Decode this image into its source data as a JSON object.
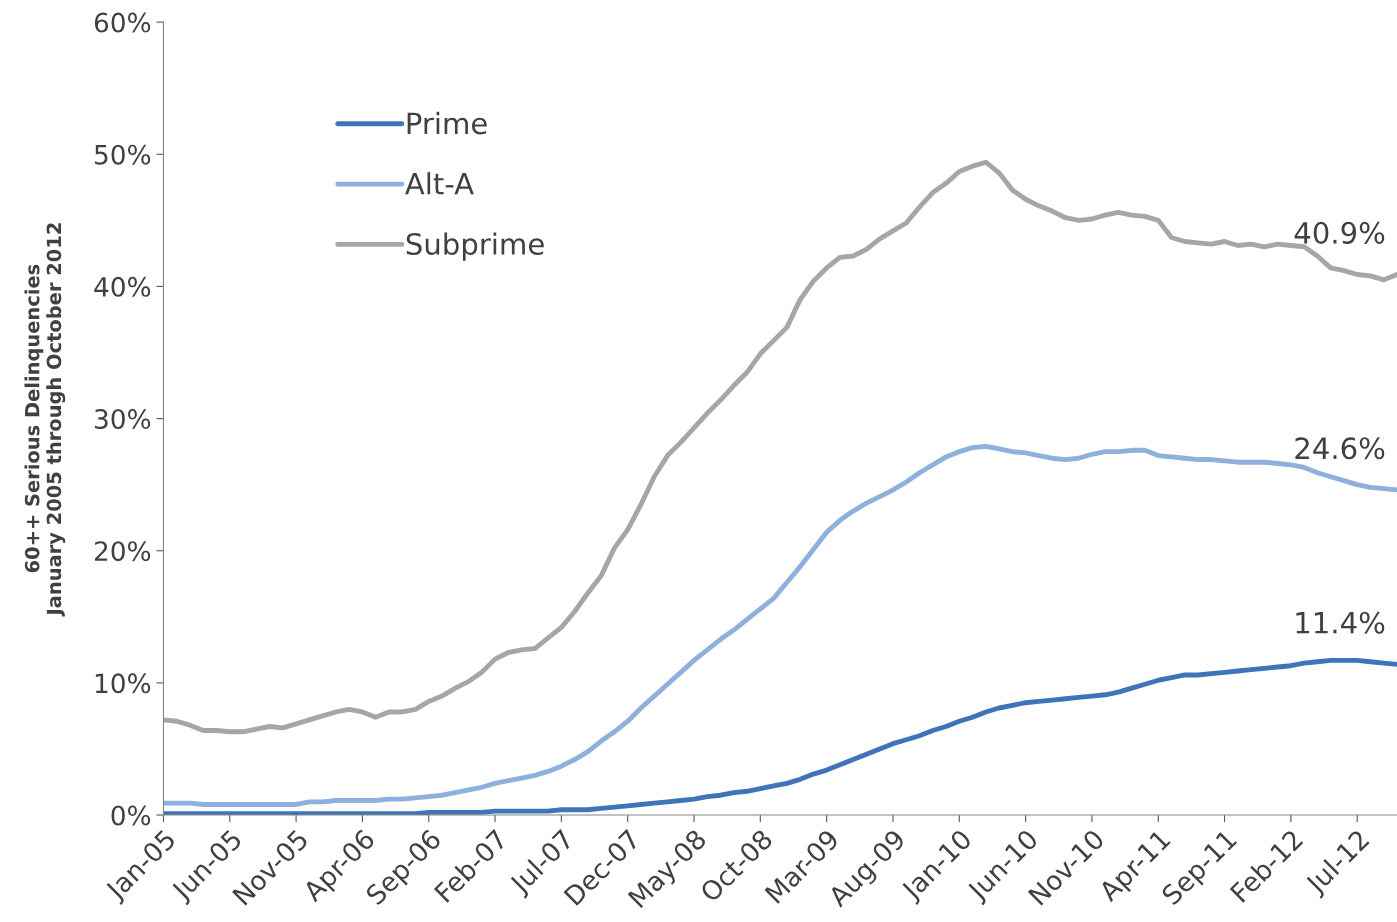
{
  "chart_data": {
    "type": "line",
    "ylabel": "60++ Serious Delinquencies\nJanuary 2005 through October 2012",
    "categories": [
      "Jan-05",
      null,
      null,
      null,
      null,
      "Jun-05",
      null,
      null,
      null,
      null,
      "Nov-05",
      null,
      null,
      null,
      null,
      "Apr-06",
      null,
      null,
      null,
      null,
      "Sep-06",
      null,
      null,
      null,
      null,
      "Feb-07",
      null,
      null,
      null,
      null,
      "Jul-07",
      null,
      null,
      null,
      null,
      "Dec-07",
      null,
      null,
      null,
      null,
      "May-08",
      null,
      null,
      null,
      null,
      "Oct-08",
      null,
      null,
      null,
      null,
      "Mar-09",
      null,
      null,
      null,
      null,
      "Aug-09",
      null,
      null,
      null,
      null,
      "Jan-10",
      null,
      null,
      null,
      null,
      "Jun-10",
      null,
      null,
      null,
      null,
      "Nov-10",
      null,
      null,
      null,
      null,
      "Apr-11",
      null,
      null,
      null,
      null,
      "Sep-11",
      null,
      null,
      null,
      null,
      "Feb-12",
      null,
      null,
      null,
      null,
      "Jul-12",
      null,
      null,
      null
    ],
    "series": [
      {
        "name": "Prime",
        "color": "#3f74b8",
        "values": [
          0.1,
          0.1,
          0.1,
          0.1,
          0.1,
          0.1,
          0.1,
          0.1,
          0.1,
          0.1,
          0.1,
          0.1,
          0.1,
          0.1,
          0.1,
          0.1,
          0.1,
          0.1,
          0.1,
          0.1,
          0.2,
          0.2,
          0.2,
          0.2,
          0.2,
          0.3,
          0.3,
          0.3,
          0.3,
          0.3,
          0.4,
          0.4,
          0.4,
          0.5,
          0.6,
          0.7,
          0.8,
          0.9,
          1.0,
          1.1,
          1.2,
          1.4,
          1.5,
          1.7,
          1.8,
          2.0,
          2.2,
          2.4,
          2.7,
          3.1,
          3.4,
          3.8,
          4.2,
          4.6,
          5.0,
          5.4,
          5.7,
          6.0,
          6.4,
          6.7,
          7.1,
          7.4,
          7.8,
          8.1,
          8.3,
          8.5,
          8.6,
          8.7,
          8.8,
          8.9,
          9.0,
          9.1,
          9.3,
          9.6,
          9.9,
          10.2,
          10.4,
          10.6,
          10.6,
          10.7,
          10.8,
          10.9,
          11.0,
          11.1,
          11.2,
          11.3,
          11.5,
          11.6,
          11.7,
          11.7,
          11.7,
          11.6,
          11.5,
          11.4
        ]
      },
      {
        "name": "Alt-A",
        "color": "#8eb0dc",
        "values": [
          0.9,
          0.9,
          0.9,
          0.8,
          0.8,
          0.8,
          0.8,
          0.8,
          0.8,
          0.8,
          0.8,
          1.0,
          1.0,
          1.1,
          1.1,
          1.1,
          1.1,
          1.2,
          1.2,
          1.3,
          1.4,
          1.5,
          1.7,
          1.9,
          2.1,
          2.4,
          2.6,
          2.8,
          3.0,
          3.3,
          3.7,
          4.2,
          4.8,
          5.6,
          6.3,
          7.1,
          8.1,
          9.0,
          9.9,
          10.8,
          11.7,
          12.5,
          13.3,
          14.0,
          14.8,
          15.6,
          16.4,
          17.6,
          18.8,
          20.1,
          21.4,
          22.3,
          23.0,
          23.6,
          24.1,
          24.6,
          25.2,
          25.9,
          26.5,
          27.1,
          27.5,
          27.8,
          27.9,
          27.7,
          27.5,
          27.4,
          27.2,
          27.0,
          26.9,
          27.0,
          27.3,
          27.5,
          27.5,
          27.6,
          27.6,
          27.2,
          27.1,
          27.0,
          26.9,
          26.9,
          26.8,
          26.7,
          26.7,
          26.7,
          26.6,
          26.5,
          26.3,
          25.9,
          25.6,
          25.3,
          25.0,
          24.8,
          24.7,
          24.6
        ]
      },
      {
        "name": "Subprime",
        "color": "#a6a6a6",
        "values": [
          7.2,
          7.1,
          6.8,
          6.4,
          6.4,
          6.3,
          6.3,
          6.5,
          6.7,
          6.6,
          6.9,
          7.2,
          7.5,
          7.8,
          8.0,
          7.8,
          7.4,
          7.8,
          7.8,
          8.0,
          8.6,
          9.0,
          9.6,
          10.1,
          10.8,
          11.8,
          12.3,
          12.5,
          12.6,
          13.4,
          14.2,
          15.4,
          16.8,
          18.1,
          20.2,
          21.6,
          23.5,
          25.6,
          27.2,
          28.2,
          29.3,
          30.4,
          31.4,
          32.5,
          33.5,
          34.9,
          35.9,
          36.9,
          39.0,
          40.4,
          41.4,
          42.2,
          42.3,
          42.8,
          43.6,
          44.2,
          44.8,
          46.0,
          47.1,
          47.8,
          48.7,
          49.1,
          49.4,
          48.6,
          47.3,
          46.6,
          46.1,
          45.7,
          45.2,
          45.0,
          45.1,
          45.4,
          45.6,
          45.4,
          45.3,
          45.0,
          43.7,
          43.4,
          43.3,
          43.2,
          43.4,
          43.1,
          43.2,
          43.0,
          43.2,
          43.1,
          43.0,
          42.3,
          41.4,
          41.2,
          40.9,
          40.8,
          40.5,
          40.9
        ]
      }
    ],
    "annotations": [
      "11.4%",
      "24.6%",
      "40.9%"
    ],
    "ylim": [
      0,
      60
    ],
    "yticks": [
      {
        "value": 0,
        "label": "0%"
      },
      {
        "value": 10,
        "label": "10%"
      },
      {
        "value": 20,
        "label": "20%"
      },
      {
        "value": 30,
        "label": "30%"
      },
      {
        "value": 40,
        "label": "40%"
      },
      {
        "value": 50,
        "label": "50%"
      },
      {
        "value": 60,
        "label": "60%"
      }
    ],
    "grid": false,
    "legend": "top left",
    "marker": "none",
    "line_style": "solid"
  }
}
